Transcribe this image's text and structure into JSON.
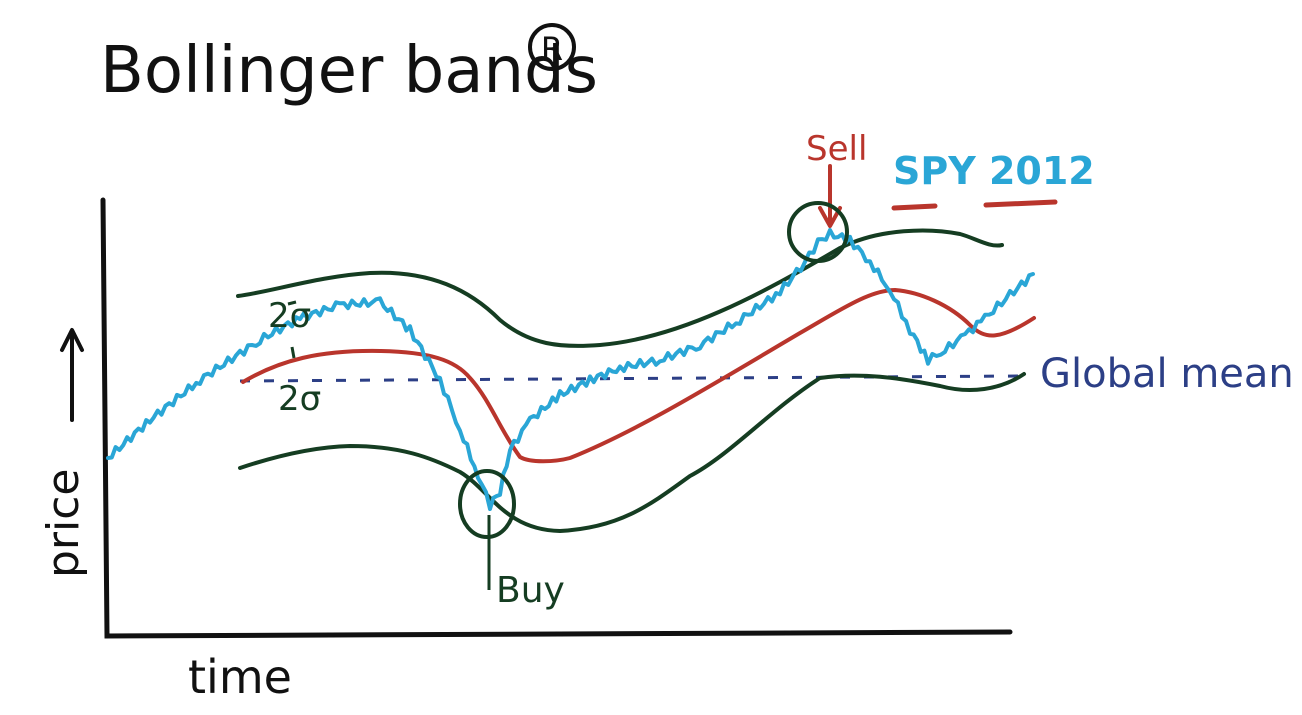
{
  "title": "Bollinger bands",
  "title_mark": "R",
  "axis_labels": {
    "y": "price",
    "x": "time"
  },
  "legend": {
    "series_name": "SPY 2012"
  },
  "annotations": {
    "sell": "Sell",
    "buy": "Buy",
    "global_mean": "Global mean",
    "sigma_upper": "2σ",
    "sigma_lower": "2σ"
  },
  "colors": {
    "price": "#2aa6d6",
    "moving_average": "#b9352c",
    "bands": "#153d22",
    "global_mean": "#2c3f86",
    "axes": "#111111"
  }
}
